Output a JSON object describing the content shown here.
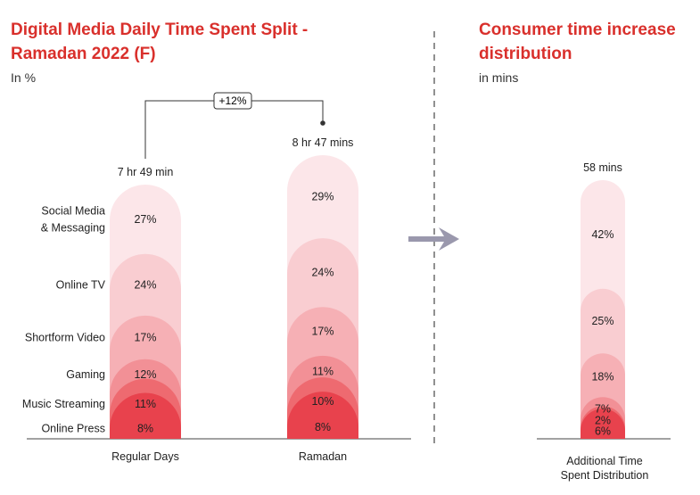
{
  "left_panel": {
    "title": "Digital Media Daily Time Spent Split - Ramadan 2022 (F)",
    "subtitle": "In %"
  },
  "right_panel": {
    "title": "Consumer time increase distribution",
    "subtitle": "in mins"
  },
  "increase_label": "+12%",
  "colors": [
    "#e8424d",
    "#ee6a70",
    "#f29096",
    "#f6b0b5",
    "#f9cdd1",
    "#fce6e9"
  ],
  "chart_data": [
    {
      "type": "bar",
      "stacked": true,
      "categories": [
        "Online Press",
        "Music Streaming",
        "Gaming",
        "Shortform Video",
        "Online TV",
        "Social Media & Messaging"
      ],
      "category_labels": [
        [
          "Online Press"
        ],
        [
          "Music Streaming"
        ],
        [
          "Gaming"
        ],
        [
          "Shortform Video"
        ],
        [
          "Online TV"
        ],
        [
          "Social Media",
          "& Messaging"
        ]
      ],
      "series": [
        {
          "name": "Regular Days",
          "total_label": "7 hr 49 min",
          "values": [
            8,
            11,
            12,
            17,
            24,
            27
          ]
        },
        {
          "name": "Ramadan",
          "total_label": "8 hr 47 mins",
          "values": [
            8,
            10,
            11,
            17,
            24,
            29
          ]
        }
      ],
      "annotation": "+12%"
    },
    {
      "type": "bar",
      "stacked": true,
      "series": [
        {
          "name": "Additional Time Spent Distribution",
          "name_lines": [
            "Additional Time",
            "Spent Distribution"
          ],
          "total_label": "58 mins",
          "values": [
            6,
            2,
            7,
            18,
            25,
            42
          ]
        }
      ]
    }
  ]
}
